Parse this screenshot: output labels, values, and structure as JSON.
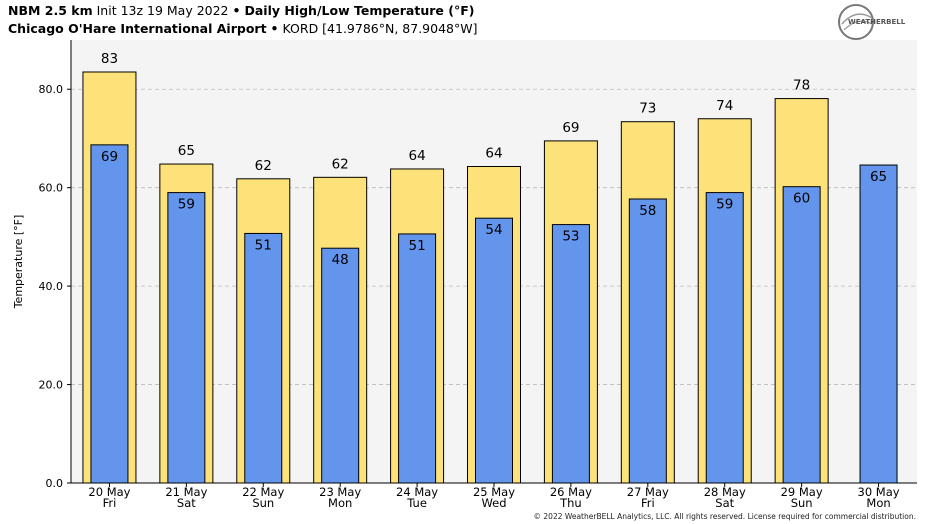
{
  "header": {
    "model": "NBM 2.5 km",
    "init": "Init 13z 19 May 2022",
    "product": "Daily High/Low Temperature (°F)",
    "location": "Chicago O'Hare International Airport",
    "station": "KORD [41.9786°N, 87.9048°W]",
    "separator": "•"
  },
  "logo": {
    "text": "WEATHERBELL"
  },
  "copyright": "© 2022 WeatherBELL Analytics, LLC. All rights reserved. License required for commercial distribution.",
  "colors": {
    "high_bar": "#fde27a",
    "low_bar": "#6495ed",
    "plot_bg": "#f4f4f4",
    "grid": "#bbbbbb"
  },
  "chart_data": {
    "type": "bar",
    "ylabel": "Temperature [°F]",
    "ylim": [
      0,
      90
    ],
    "yticks": [
      "0.0",
      "20.0",
      "40.0",
      "60.0",
      "80.0"
    ],
    "grid": true,
    "categories": [
      [
        "20 May",
        "Fri"
      ],
      [
        "21 May",
        "Sat"
      ],
      [
        "22 May",
        "Sun"
      ],
      [
        "23 May",
        "Mon"
      ],
      [
        "24 May",
        "Tue"
      ],
      [
        "25 May",
        "Wed"
      ],
      [
        "26 May",
        "Thu"
      ],
      [
        "27 May",
        "Fri"
      ],
      [
        "28 May",
        "Sat"
      ],
      [
        "29 May",
        "Sun"
      ],
      [
        "30 May",
        "Mon"
      ]
    ],
    "series": [
      {
        "values": [
          83.5,
          64.8,
          61.8,
          62.1,
          63.8,
          64.3,
          69.5,
          73.4,
          74.0,
          78.1,
          null
        ],
        "labels": [
          "83",
          "65",
          "62",
          "62",
          "64",
          "64",
          "69",
          "73",
          "74",
          "78",
          null
        ]
      },
      {
        "values": [
          68.7,
          59.0,
          50.7,
          47.7,
          50.6,
          53.8,
          52.5,
          57.7,
          59.0,
          60.2,
          64.6
        ],
        "labels": [
          "69",
          "59",
          "51",
          "48",
          "51",
          "54",
          "53",
          "58",
          "59",
          "60",
          "65"
        ]
      }
    ]
  }
}
